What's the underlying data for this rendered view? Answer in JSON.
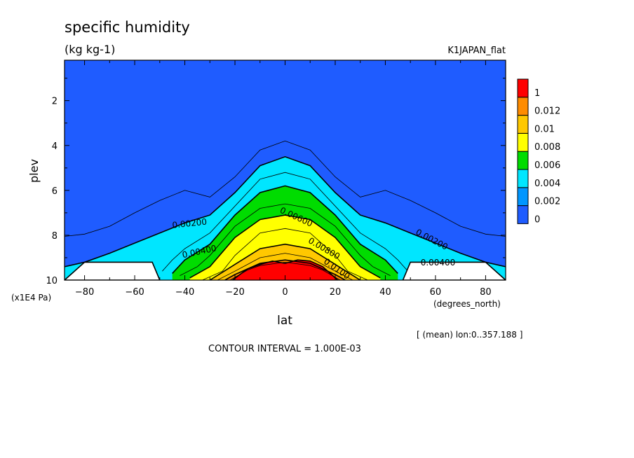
{
  "chart_data": {
    "type": "heatmap",
    "title": "specific humidity",
    "units": "(kg kg-1)",
    "dataset": "K1JAPAN_flat",
    "xlabel": "lat",
    "x_units": "(degrees_north)",
    "ylabel": "plev",
    "y_units": "(x1E4 Pa)",
    "xlim": [
      -88,
      88
    ],
    "ylim": [
      10,
      0.2
    ],
    "xticks": [
      "-80",
      "-60",
      "-40",
      "-20",
      "0",
      "20",
      "40",
      "60",
      "80"
    ],
    "yticks": [
      "2",
      "4",
      "6",
      "8",
      "10"
    ],
    "region_note": "[ (mean) lon:0..357.188 ]",
    "contour_interval": "CONTOUR INTERVAL = 1.000E-03",
    "colorbar": {
      "labels": [
        "0",
        "0.002",
        "0.004",
        "0.006",
        "0.008",
        "0.01",
        "0.012",
        "1"
      ],
      "colors": [
        "#1f5cff",
        "#0096ff",
        "#00e6ff",
        "#00dc00",
        "#ffff00",
        "#ffc800",
        "#ff8c00",
        "#ff0000"
      ]
    },
    "levels": [
      {
        "value": 0.001,
        "lat": [
          -88,
          -80,
          -70,
          -60,
          -50,
          -40,
          -30,
          -20,
          -10,
          0,
          10,
          20,
          30,
          40,
          50,
          60,
          70,
          80,
          88
        ],
        "plev": [
          8.05,
          7.95,
          7.6,
          7.0,
          6.45,
          6.0,
          6.3,
          5.4,
          4.2,
          3.8,
          4.2,
          5.4,
          6.3,
          6.0,
          6.45,
          7.0,
          7.6,
          7.95,
          8.05
        ]
      },
      {
        "value": 0.002,
        "lat": [
          -88,
          -80,
          -70,
          -60,
          -50,
          -40,
          -30,
          -20,
          -10,
          0,
          10,
          20,
          30,
          40,
          50,
          60,
          70,
          80,
          88
        ],
        "plev": [
          9.4,
          9.2,
          8.8,
          8.35,
          7.9,
          7.45,
          7.1,
          6.1,
          4.9,
          4.5,
          4.9,
          6.1,
          7.1,
          7.45,
          7.9,
          8.35,
          8.8,
          9.2,
          9.4
        ]
      },
      {
        "value": 0.003,
        "lat": [
          -49,
          -45,
          -40,
          -30,
          -20,
          -10,
          0,
          10,
          20,
          30,
          40,
          45,
          49
        ],
        "plev": [
          9.6,
          9.1,
          8.6,
          7.9,
          6.7,
          5.5,
          5.2,
          5.5,
          6.7,
          7.9,
          8.6,
          9.1,
          9.6
        ]
      },
      {
        "value": 0.004,
        "lat": [
          -45,
          -40,
          -30,
          -20,
          -10,
          0,
          10,
          20,
          30,
          40,
          45
        ],
        "plev": [
          9.7,
          9.1,
          8.4,
          7.1,
          6.1,
          5.8,
          6.1,
          7.1,
          8.4,
          9.1,
          9.7
        ]
      },
      {
        "value": 0.005,
        "lat": [
          -42,
          -35,
          -30,
          -20,
          -10,
          0,
          10,
          20,
          30,
          35,
          42
        ],
        "plev": [
          9.8,
          9.4,
          8.9,
          7.6,
          6.8,
          6.6,
          6.8,
          7.6,
          8.9,
          9.4,
          9.8
        ]
      },
      {
        "value": 0.006,
        "lat": [
          -38,
          -30,
          -20,
          -10,
          0,
          10,
          20,
          30,
          38
        ],
        "plev": [
          9.9,
          9.4,
          8.1,
          7.3,
          7.1,
          7.3,
          8.1,
          9.4,
          9.9
        ]
      },
      {
        "value": 0.007,
        "lat": [
          -33,
          -25,
          -20,
          -10,
          0,
          10,
          20,
          25,
          33
        ],
        "plev": [
          10,
          9.6,
          8.9,
          7.9,
          7.7,
          7.9,
          8.9,
          9.6,
          10
        ]
      },
      {
        "value": 0.008,
        "lat": [
          -30,
          -20,
          -10,
          0,
          10,
          20,
          30
        ],
        "plev": [
          10,
          9.3,
          8.6,
          8.4,
          8.6,
          9.3,
          10
        ]
      },
      {
        "value": 0.009,
        "lat": [
          -27,
          -20,
          -10,
          0,
          10,
          20,
          27
        ],
        "plev": [
          10,
          9.6,
          9.0,
          8.8,
          9.0,
          9.6,
          10
        ]
      },
      {
        "value": 0.01,
        "lat": [
          -24,
          -20,
          -10,
          0,
          10,
          20,
          24
        ],
        "plev": [
          10,
          9.75,
          9.25,
          9.1,
          9.25,
          9.75,
          10
        ]
      },
      {
        "value": 0.011,
        "lat": [
          -22,
          -15,
          -10,
          0,
          10,
          15,
          22
        ],
        "plev": [
          10,
          9.55,
          9.35,
          9.2,
          9.35,
          9.55,
          10
        ]
      },
      {
        "value": 0.012,
        "lat": [
          -21,
          -15,
          -10,
          -5,
          0,
          5,
          10,
          15,
          21
        ],
        "plev": [
          10,
          9.5,
          9.3,
          9.15,
          9.25,
          9.1,
          9.15,
          9.4,
          10
        ]
      }
    ],
    "contour_labels": [
      {
        "text": "0.00200",
        "lat": -38,
        "plev": 7.6,
        "angle": -6
      },
      {
        "text": "0.00400",
        "lat": -34,
        "plev": 8.85,
        "angle": -12
      },
      {
        "text": "0.00600",
        "lat": 4,
        "plev": 7.3,
        "angle": 25
      },
      {
        "text": "0.00800",
        "lat": 15,
        "plev": 8.7,
        "angle": 30
      },
      {
        "text": "0.0100",
        "lat": 20,
        "plev": 9.6,
        "angle": 35
      },
      {
        "text": "0.00200",
        "lat": 58,
        "plev": 8.3,
        "angle": 28
      },
      {
        "text": "0.00400",
        "lat": 61,
        "plev": 9.35,
        "angle": 0
      }
    ],
    "terrain": [
      {
        "lat": [
          -88,
          -80,
          -66,
          -53,
          -50,
          -53,
          -80,
          -88
        ],
        "plev": [
          10,
          9.2,
          9.2,
          9.2,
          10,
          10,
          10,
          10
        ]
      },
      {
        "lat": [
          47,
          50,
          80,
          88,
          88,
          47
        ],
        "plev": [
          10,
          9.2,
          9.2,
          10,
          10,
          10
        ]
      }
    ]
  }
}
